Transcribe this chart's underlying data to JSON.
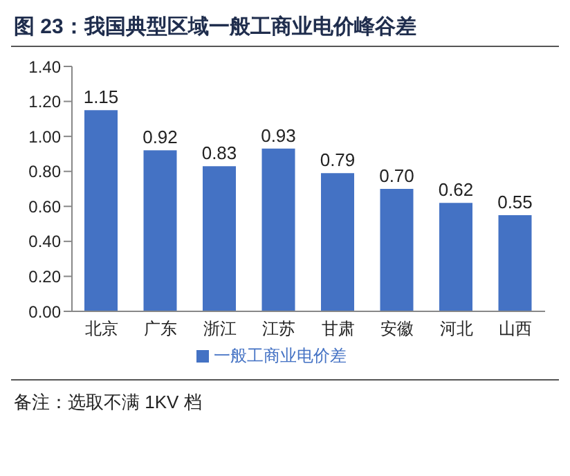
{
  "chart_data": {
    "type": "bar",
    "title": "图 23：我国典型区域一般工商业电价峰谷差",
    "categories": [
      "北京",
      "广东",
      "浙江",
      "江苏",
      "甘肃",
      "安徽",
      "河北",
      "山西"
    ],
    "series": [
      {
        "name": "一般工商业电价差",
        "color": "#4472c4",
        "values": [
          1.15,
          0.92,
          0.83,
          0.93,
          0.79,
          0.7,
          0.62,
          0.55
        ],
        "value_labels": [
          "1.15",
          "0.92",
          "0.83",
          "0.93",
          "0.79",
          "0.70",
          "0.62",
          "0.55"
        ]
      }
    ],
    "ylim": [
      0,
      1.4
    ],
    "yticks": [
      {
        "value": 0,
        "label": "0.00"
      },
      {
        "value": 0.2,
        "label": "0.20"
      },
      {
        "value": 0.4,
        "label": "0.40"
      },
      {
        "value": 0.6,
        "label": "0.60"
      },
      {
        "value": 0.8,
        "label": "0.80"
      },
      {
        "value": 1,
        "label": "1.00"
      },
      {
        "value": 1.2,
        "label": "1.20"
      },
      {
        "value": 1.4,
        "label": "1.40"
      }
    ],
    "grid": false,
    "legend": "bottom",
    "annotations": [
      "备注：选取不满 1KV 档"
    ]
  }
}
